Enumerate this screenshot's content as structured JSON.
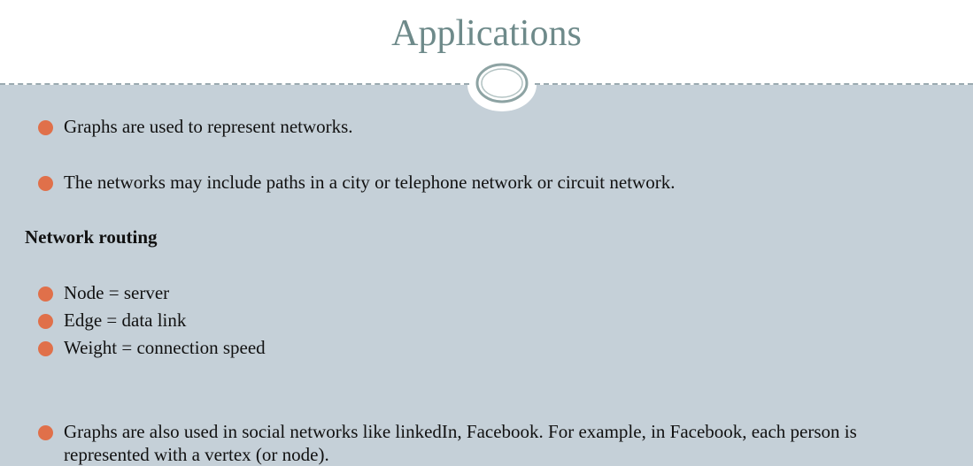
{
  "title": "Applications",
  "bullets": [
    "Graphs are used to represent networks.",
    "The networks may include paths in a city or telephone network or circuit network."
  ],
  "section": {
    "heading": "Network routing",
    "items": [
      "Node = server",
      "Edge = data link",
      "Weight = connection speed"
    ]
  },
  "social": {
    "lines": [
      "Graphs are also used in social networks like linkedIn, Facebook. For example, in Facebook, each person is",
      "represented with a vertex (or node)."
    ]
  }
}
